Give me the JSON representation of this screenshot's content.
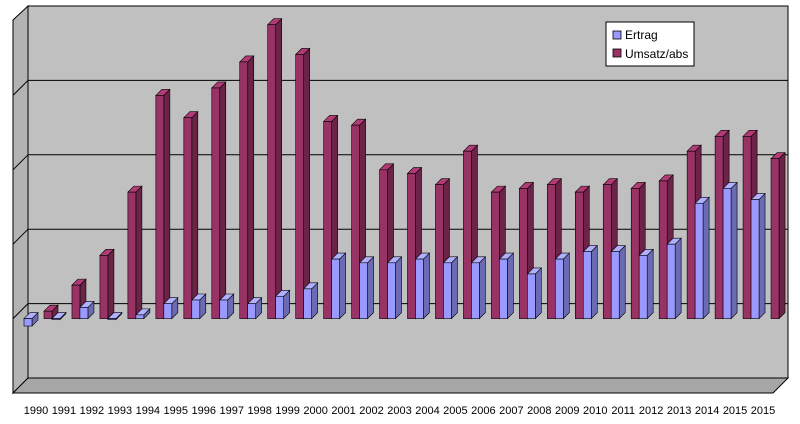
{
  "chart_data": {
    "type": "bar",
    "categories": [
      "1990",
      "1991",
      "1992",
      "1993",
      "1994",
      "1995",
      "1996",
      "1997",
      "1998",
      "1999",
      "2000",
      "2001",
      "2002",
      "2003",
      "2004",
      "2005",
      "2006",
      "2007",
      "2008",
      "2009",
      "2010",
      "2011",
      "2012",
      "2013",
      "2014",
      "2015",
      "2015"
    ],
    "series": [
      {
        "name": "Ertrag",
        "color": "#9999ff",
        "values": [
          -0.1,
          0,
          0.15,
          0,
          0.05,
          0.2,
          0.25,
          0.25,
          0.2,
          0.3,
          0.4,
          0.8,
          0.75,
          0.75,
          0.8,
          0.75,
          0.75,
          0.8,
          0.6,
          0.8,
          0.9,
          0.9,
          0.85,
          1.0,
          1.55,
          1.75,
          1.6
        ]
      },
      {
        "name": "Umsatz/abs",
        "color": "#993366",
        "values": [
          0.1,
          0.45,
          0.85,
          1.7,
          3.0,
          2.7,
          3.1,
          3.45,
          3.95,
          3.55,
          2.65,
          2.6,
          2.0,
          1.95,
          1.8,
          2.25,
          1.7,
          1.75,
          1.8,
          1.7,
          1.8,
          1.75,
          1.85,
          2.25,
          2.45,
          2.45,
          2.15
        ]
      }
    ],
    "ylim": [
      -1,
      4
    ],
    "grid": true,
    "legend": "top-right",
    "title": "",
    "xlabel": "",
    "ylabel": ""
  }
}
